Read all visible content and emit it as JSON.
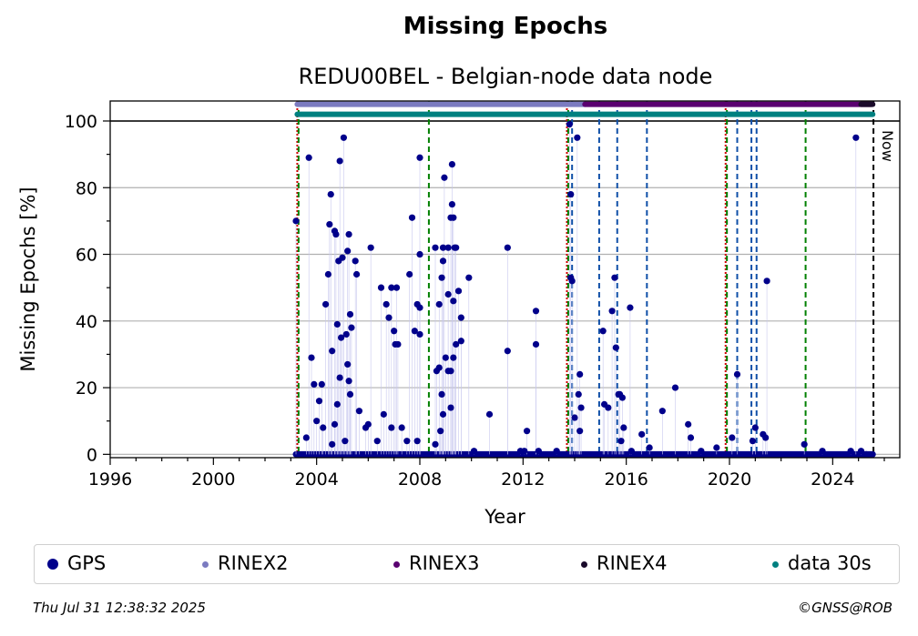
{
  "chart_data": {
    "type": "scatter",
    "title": "Missing Epochs",
    "subtitle": "REDU00BEL - Belgian-node data node",
    "xlabel": "Year",
    "ylabel": "Missing Epochs [%]",
    "xlim": [
      1996,
      2026.6
    ],
    "ylim": [
      -1,
      106
    ],
    "x_ticks": [
      1996,
      2000,
      2004,
      2008,
      2012,
      2016,
      2020,
      2024
    ],
    "y_ticks": [
      0,
      20,
      40,
      60,
      80,
      100
    ],
    "grid": true,
    "now_label": "Now",
    "now_year": 2025.58,
    "series": [
      {
        "name": "GPS",
        "color": "#00008b",
        "points": [
          [
            2003.2,
            70
          ],
          [
            2003.7,
            89
          ],
          [
            2003.8,
            29
          ],
          [
            2003.9,
            21
          ],
          [
            2004.1,
            16
          ],
          [
            2004.2,
            21
          ],
          [
            2004.35,
            45
          ],
          [
            2004.45,
            54
          ],
          [
            2004.5,
            69
          ],
          [
            2004.55,
            78
          ],
          [
            2004.6,
            31
          ],
          [
            2004.7,
            67
          ],
          [
            2004.75,
            66
          ],
          [
            2004.8,
            39
          ],
          [
            2004.85,
            58
          ],
          [
            2004.9,
            88
          ],
          [
            2005.0,
            59
          ],
          [
            2005.05,
            95
          ],
          [
            2005.2,
            61
          ],
          [
            2005.25,
            66
          ],
          [
            2005.3,
            42
          ],
          [
            2005.35,
            38
          ],
          [
            2005.5,
            58
          ],
          [
            2005.55,
            54
          ],
          [
            2005.15,
            36
          ],
          [
            2005.2,
            27
          ],
          [
            2005.25,
            22
          ],
          [
            2005.3,
            18
          ],
          [
            2004.9,
            23
          ],
          [
            2004.8,
            15
          ],
          [
            2004.7,
            9
          ],
          [
            2004.25,
            8
          ],
          [
            2004.95,
            35
          ],
          [
            2006.1,
            62
          ],
          [
            2006.5,
            50
          ],
          [
            2006.7,
            45
          ],
          [
            2006.8,
            41
          ],
          [
            2006.9,
            50
          ],
          [
            2007.0,
            37
          ],
          [
            2007.05,
            33
          ],
          [
            2007.15,
            33
          ],
          [
            2007.1,
            50
          ],
          [
            2007.6,
            54
          ],
          [
            2007.7,
            71
          ],
          [
            2007.8,
            37
          ],
          [
            2007.9,
            45
          ],
          [
            2008.0,
            44
          ],
          [
            2008.0,
            36
          ],
          [
            2008.0,
            60
          ],
          [
            2008.0,
            89
          ],
          [
            2008.6,
            62
          ],
          [
            2008.75,
            45
          ],
          [
            2008.85,
            53
          ],
          [
            2008.9,
            62
          ],
          [
            2008.95,
            83
          ],
          [
            2008.9,
            58
          ],
          [
            2009.1,
            62
          ],
          [
            2009.1,
            48
          ],
          [
            2009.25,
            87
          ],
          [
            2009.2,
            71
          ],
          [
            2009.25,
            75
          ],
          [
            2009.3,
            71
          ],
          [
            2009.35,
            62
          ],
          [
            2009.4,
            62
          ],
          [
            2009.3,
            46
          ],
          [
            2009.4,
            33
          ],
          [
            2009.5,
            49
          ],
          [
            2009.6,
            34
          ],
          [
            2009.6,
            41
          ],
          [
            2009.9,
            53
          ],
          [
            2008.65,
            25
          ],
          [
            2008.75,
            26
          ],
          [
            2008.85,
            18
          ],
          [
            2009.0,
            29
          ],
          [
            2009.1,
            25
          ],
          [
            2009.2,
            25
          ],
          [
            2009.3,
            29
          ],
          [
            2009.2,
            14
          ],
          [
            2008.9,
            12
          ],
          [
            2008.8,
            7
          ],
          [
            2008.6,
            3
          ],
          [
            2010.7,
            12
          ],
          [
            2011.4,
            62
          ],
          [
            2011.4,
            31
          ],
          [
            2012.05,
            1
          ],
          [
            2012.15,
            7
          ],
          [
            2012.5,
            43
          ],
          [
            2012.5,
            33
          ],
          [
            2013.8,
            99
          ],
          [
            2013.85,
            78
          ],
          [
            2013.85,
            53
          ],
          [
            2013.9,
            52
          ],
          [
            2014.1,
            95
          ],
          [
            2014.0,
            11
          ],
          [
            2014.15,
            18
          ],
          [
            2014.2,
            24
          ],
          [
            2014.25,
            14
          ],
          [
            2014.2,
            7
          ],
          [
            2015.1,
            37
          ],
          [
            2015.15,
            15
          ],
          [
            2015.3,
            14
          ],
          [
            2015.45,
            43
          ],
          [
            2015.55,
            53
          ],
          [
            2015.6,
            32
          ],
          [
            2015.7,
            18
          ],
          [
            2015.75,
            18
          ],
          [
            2015.85,
            17
          ],
          [
            2015.9,
            8
          ],
          [
            2016.15,
            44
          ],
          [
            2016.6,
            6
          ],
          [
            2017.4,
            13
          ],
          [
            2017.9,
            20
          ],
          [
            2018.4,
            9
          ],
          [
            2018.5,
            5
          ],
          [
            2020.1,
            5
          ],
          [
            2020.3,
            24
          ],
          [
            2020.9,
            4
          ],
          [
            2021.0,
            8
          ],
          [
            2021.3,
            6
          ],
          [
            2021.4,
            5
          ],
          [
            2021.45,
            52
          ],
          [
            2022.9,
            3
          ],
          [
            2024.9,
            95
          ],
          [
            2006.0,
            9
          ],
          [
            2005.65,
            13
          ],
          [
            2005.9,
            8
          ],
          [
            2006.35,
            4
          ],
          [
            2006.6,
            12
          ],
          [
            2006.9,
            8
          ],
          [
            2007.3,
            8
          ],
          [
            2007.5,
            4
          ],
          [
            2007.9,
            4
          ],
          [
            2005.1,
            4
          ],
          [
            2004.6,
            3
          ],
          [
            2004.0,
            10
          ],
          [
            2003.6,
            5
          ],
          [
            2010.1,
            1
          ],
          [
            2015.8,
            4
          ],
          [
            2018.9,
            1
          ],
          [
            2019.5,
            2
          ],
          [
            2016.2,
            1
          ],
          [
            2016.9,
            2
          ],
          [
            2013.3,
            1
          ],
          [
            2012.6,
            1
          ],
          [
            2011.9,
            1
          ],
          [
            2023.6,
            1
          ],
          [
            2024.7,
            1
          ],
          [
            2025.1,
            1
          ],
          [
            2025.3,
            0
          ]
        ]
      },
      {
        "name": "RINEX2",
        "color": "#7b7bc0",
        "range": [
          2003.25,
          2014.4
        ],
        "y": 105
      },
      {
        "name": "RINEX3",
        "color": "#5a0070",
        "range": [
          2014.4,
          2025.5
        ],
        "y": 105
      },
      {
        "name": "RINEX4",
        "color": "#1a0a2a",
        "range": [
          2025.1,
          2025.55
        ],
        "y": 105
      },
      {
        "name": "data 30s",
        "color": "#008080",
        "range": [
          2003.25,
          2025.55
        ],
        "y": 102
      }
    ],
    "vertical_markers": {
      "red": [
        2003.25,
        2013.7,
        2019.85
      ],
      "green": [
        2003.3,
        2008.35,
        2013.75,
        2019.9,
        2022.95
      ],
      "blue": [
        2013.9,
        2014.95,
        2015.65,
        2016.8,
        2020.3,
        2020.85,
        2021.05
      ],
      "black": [
        2025.58
      ]
    }
  },
  "legend": {
    "items": [
      {
        "label": "GPS",
        "color": "#00008b"
      },
      {
        "label": "RINEX2",
        "color": "#7b7bc0"
      },
      {
        "label": "RINEX3",
        "color": "#5a0070"
      },
      {
        "label": "RINEX4",
        "color": "#1a0a2a"
      },
      {
        "label": "data 30s",
        "color": "#008080"
      }
    ]
  },
  "footer": {
    "timestamp": "Thu Jul 31 12:38:32 2025",
    "copyright": "©GNSS@ROB"
  }
}
